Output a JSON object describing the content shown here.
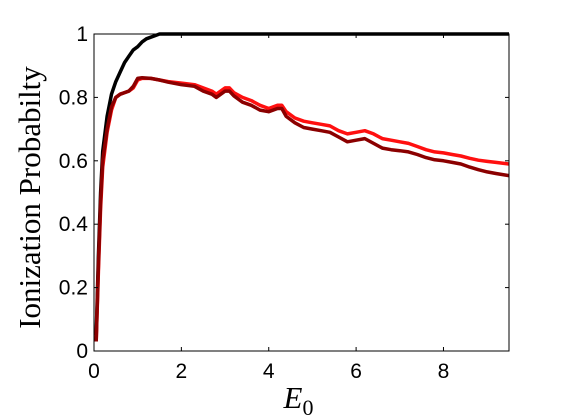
{
  "chart_data": {
    "type": "line",
    "title": "",
    "xlabel": "E",
    "xlabel_subscript": "0",
    "ylabel": "Ionization Probabilty",
    "xlim": [
      0,
      9.5
    ],
    "ylim": [
      0,
      1
    ],
    "xticks": [
      0,
      2,
      4,
      6,
      8
    ],
    "yticks": [
      0,
      0.2,
      0.4,
      0.6,
      0.8,
      1
    ],
    "xtick_labels": [
      "0",
      "2",
      "4",
      "6",
      "8"
    ],
    "ytick_labels": [
      "0",
      "0.2",
      "0.4",
      "0.6",
      "0.8",
      "1"
    ],
    "grid": false,
    "series": [
      {
        "color": "#000000",
        "points": [
          [
            0.05,
            0.05
          ],
          [
            0.1,
            0.3
          ],
          [
            0.15,
            0.5
          ],
          [
            0.2,
            0.63
          ],
          [
            0.3,
            0.74
          ],
          [
            0.4,
            0.81
          ],
          [
            0.5,
            0.85
          ],
          [
            0.6,
            0.88
          ],
          [
            0.7,
            0.91
          ],
          [
            0.8,
            0.93
          ],
          [
            0.9,
            0.95
          ],
          [
            1.0,
            0.96
          ],
          [
            1.1,
            0.975
          ],
          [
            1.2,
            0.985
          ],
          [
            1.3,
            0.99
          ],
          [
            1.4,
            0.995
          ],
          [
            1.5,
            1.0
          ],
          [
            1.7,
            1.0
          ],
          [
            9.5,
            1.0
          ]
        ]
      },
      {
        "color": "#ff1010",
        "points": [
          [
            0.05,
            0.03
          ],
          [
            0.1,
            0.25
          ],
          [
            0.15,
            0.45
          ],
          [
            0.2,
            0.58
          ],
          [
            0.3,
            0.69
          ],
          [
            0.4,
            0.76
          ],
          [
            0.5,
            0.8
          ],
          [
            0.6,
            0.81
          ],
          [
            0.7,
            0.815
          ],
          [
            0.8,
            0.82
          ],
          [
            0.9,
            0.83
          ],
          [
            1.0,
            0.855
          ],
          [
            1.1,
            0.86
          ],
          [
            1.3,
            0.86
          ],
          [
            1.5,
            0.855
          ],
          [
            1.7,
            0.85
          ],
          [
            2.0,
            0.845
          ],
          [
            2.3,
            0.84
          ],
          [
            2.5,
            0.83
          ],
          [
            2.7,
            0.82
          ],
          [
            2.8,
            0.81
          ],
          [
            3.0,
            0.83
          ],
          [
            3.1,
            0.83
          ],
          [
            3.2,
            0.815
          ],
          [
            3.4,
            0.8
          ],
          [
            3.6,
            0.79
          ],
          [
            3.8,
            0.775
          ],
          [
            4.0,
            0.765
          ],
          [
            4.2,
            0.775
          ],
          [
            4.3,
            0.775
          ],
          [
            4.4,
            0.755
          ],
          [
            4.6,
            0.735
          ],
          [
            4.8,
            0.725
          ],
          [
            5.0,
            0.72
          ],
          [
            5.2,
            0.715
          ],
          [
            5.4,
            0.71
          ],
          [
            5.6,
            0.695
          ],
          [
            5.8,
            0.685
          ],
          [
            6.0,
            0.69
          ],
          [
            6.2,
            0.695
          ],
          [
            6.4,
            0.685
          ],
          [
            6.6,
            0.67
          ],
          [
            6.8,
            0.665
          ],
          [
            7.0,
            0.66
          ],
          [
            7.2,
            0.655
          ],
          [
            7.4,
            0.645
          ],
          [
            7.6,
            0.635
          ],
          [
            7.8,
            0.628
          ],
          [
            8.0,
            0.625
          ],
          [
            8.2,
            0.62
          ],
          [
            8.4,
            0.615
          ],
          [
            8.6,
            0.608
          ],
          [
            8.8,
            0.602
          ],
          [
            9.0,
            0.598
          ],
          [
            9.2,
            0.595
          ],
          [
            9.5,
            0.59
          ]
        ]
      },
      {
        "color": "#8b0000",
        "points": [
          [
            0.05,
            0.03
          ],
          [
            0.1,
            0.27
          ],
          [
            0.15,
            0.47
          ],
          [
            0.2,
            0.6
          ],
          [
            0.3,
            0.7
          ],
          [
            0.4,
            0.77
          ],
          [
            0.5,
            0.8
          ],
          [
            0.6,
            0.81
          ],
          [
            0.7,
            0.815
          ],
          [
            0.8,
            0.82
          ],
          [
            0.9,
            0.835
          ],
          [
            1.0,
            0.86
          ],
          [
            1.1,
            0.862
          ],
          [
            1.3,
            0.86
          ],
          [
            1.5,
            0.855
          ],
          [
            1.7,
            0.848
          ],
          [
            2.0,
            0.84
          ],
          [
            2.3,
            0.835
          ],
          [
            2.5,
            0.82
          ],
          [
            2.7,
            0.81
          ],
          [
            2.8,
            0.8
          ],
          [
            3.0,
            0.82
          ],
          [
            3.1,
            0.82
          ],
          [
            3.2,
            0.805
          ],
          [
            3.4,
            0.785
          ],
          [
            3.6,
            0.775
          ],
          [
            3.8,
            0.76
          ],
          [
            4.0,
            0.755
          ],
          [
            4.2,
            0.765
          ],
          [
            4.3,
            0.765
          ],
          [
            4.4,
            0.74
          ],
          [
            4.6,
            0.72
          ],
          [
            4.8,
            0.705
          ],
          [
            5.0,
            0.7
          ],
          [
            5.2,
            0.695
          ],
          [
            5.4,
            0.69
          ],
          [
            5.6,
            0.675
          ],
          [
            5.8,
            0.66
          ],
          [
            6.0,
            0.665
          ],
          [
            6.2,
            0.67
          ],
          [
            6.4,
            0.655
          ],
          [
            6.6,
            0.64
          ],
          [
            6.8,
            0.635
          ],
          [
            7.0,
            0.632
          ],
          [
            7.2,
            0.628
          ],
          [
            7.4,
            0.62
          ],
          [
            7.6,
            0.61
          ],
          [
            7.8,
            0.603
          ],
          [
            8.0,
            0.6
          ],
          [
            8.2,
            0.595
          ],
          [
            8.4,
            0.59
          ],
          [
            8.6,
            0.58
          ],
          [
            8.8,
            0.572
          ],
          [
            9.0,
            0.565
          ],
          [
            9.2,
            0.56
          ],
          [
            9.5,
            0.553
          ]
        ]
      }
    ]
  }
}
